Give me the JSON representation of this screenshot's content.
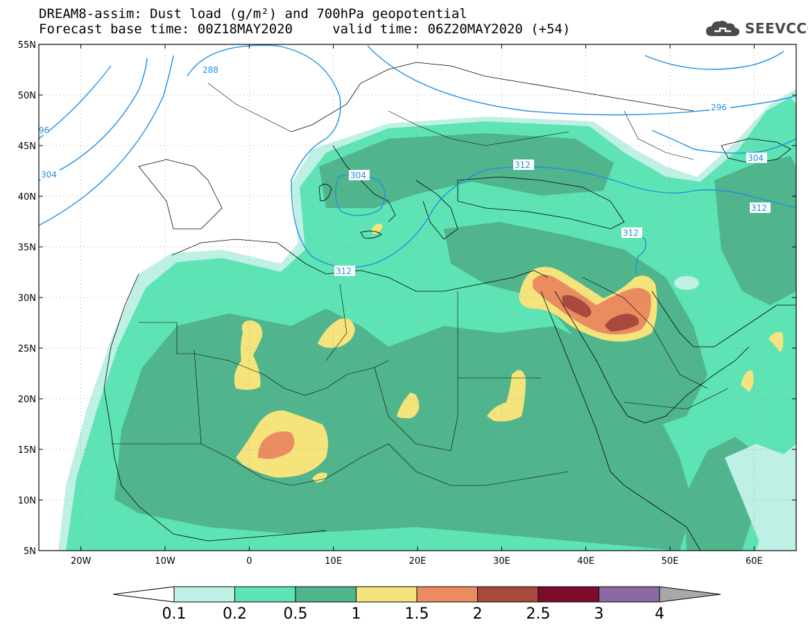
{
  "header": {
    "title_line1": "DREAM8-assim: Dust load (g/m²) and 700hPa geopotential",
    "title_line2": "Forecast base time: 00Z18MAY2020     valid time: 06Z20MAY2020 (+54)"
  },
  "logo": {
    "text": "SEEVCCC",
    "icon": "cloud-icon"
  },
  "map": {
    "lat_labels": [
      "55N",
      "50N",
      "45N",
      "40N",
      "35N",
      "30N",
      "25N",
      "20N",
      "15N",
      "10N",
      "5N"
    ],
    "lon_labels": [
      "20W",
      "10W",
      "0",
      "10E",
      "20E",
      "30E",
      "40E",
      "50E",
      "60E"
    ],
    "contour_labels": [
      "288",
      "296",
      "96",
      "304",
      "304",
      "312",
      "312",
      "312",
      "304",
      "312"
    ],
    "contour_color": "#1e90e0"
  },
  "colorbar": {
    "colors": [
      "#ffffff",
      "#bff0e6",
      "#5ee3b4",
      "#50b58c",
      "#f5e37c",
      "#ea8c60",
      "#a74a3d",
      "#7d0b2b",
      "#8b6aa2",
      "#a8a8a8"
    ],
    "labels": [
      "0.1",
      "0.2",
      "0.5",
      "1",
      "1.5",
      "2",
      "2.5",
      "3",
      "4"
    ]
  }
}
